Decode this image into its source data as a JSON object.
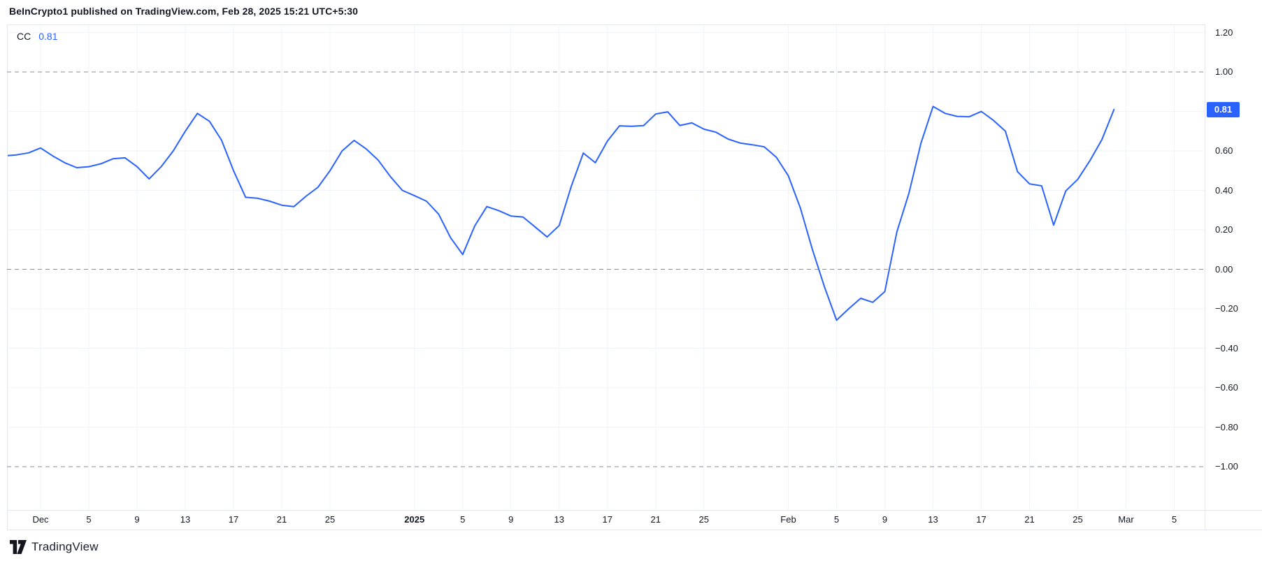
{
  "header": {
    "attribution": "BeInCrypto1 published on TradingView.com, Feb 28, 2025 15:21 UTC+5:30"
  },
  "legend": {
    "indicator": "CC",
    "value": "0.81"
  },
  "y_axis": {
    "labels": [
      {
        "text": "1.20",
        "value": 1.2
      },
      {
        "text": "1.00",
        "value": 1.0
      },
      {
        "text": "0.60",
        "value": 0.6
      },
      {
        "text": "0.40",
        "value": 0.4
      },
      {
        "text": "0.20",
        "value": 0.2
      },
      {
        "text": "0.00",
        "value": 0.0
      },
      {
        "text": "−0.20",
        "value": -0.2
      },
      {
        "text": "−0.40",
        "value": -0.4
      },
      {
        "text": "−0.60",
        "value": -0.6
      },
      {
        "text": "−0.80",
        "value": -0.8
      },
      {
        "text": "−1.00",
        "value": -1.0
      }
    ],
    "solid_gridline_levels": [
      1.2,
      0.8,
      0.6,
      0.4,
      0.2,
      -0.2,
      -0.4,
      -0.6,
      -0.8
    ],
    "dashed_levels": [
      1.0,
      0.0,
      -1.0
    ],
    "badge": {
      "text": "0.81",
      "value": 0.81
    }
  },
  "x_axis": {
    "ticks": [
      {
        "label": "Dec",
        "date": "2024-12-01",
        "bold": false
      },
      {
        "label": "5",
        "date": "2024-12-05",
        "bold": false
      },
      {
        "label": "9",
        "date": "2024-12-09",
        "bold": false
      },
      {
        "label": "13",
        "date": "2024-12-13",
        "bold": false
      },
      {
        "label": "17",
        "date": "2024-12-17",
        "bold": false
      },
      {
        "label": "21",
        "date": "2024-12-21",
        "bold": false
      },
      {
        "label": "25",
        "date": "2024-12-25",
        "bold": false
      },
      {
        "label": "2025",
        "date": "2025-01-01",
        "bold": true
      },
      {
        "label": "5",
        "date": "2025-01-05",
        "bold": false
      },
      {
        "label": "9",
        "date": "2025-01-09",
        "bold": false
      },
      {
        "label": "13",
        "date": "2025-01-13",
        "bold": false
      },
      {
        "label": "17",
        "date": "2025-01-17",
        "bold": false
      },
      {
        "label": "21",
        "date": "2025-01-21",
        "bold": false
      },
      {
        "label": "25",
        "date": "2025-01-25",
        "bold": false
      },
      {
        "label": "Feb",
        "date": "2025-02-01",
        "bold": false
      },
      {
        "label": "5",
        "date": "2025-02-05",
        "bold": false
      },
      {
        "label": "9",
        "date": "2025-02-09",
        "bold": false
      },
      {
        "label": "13",
        "date": "2025-02-13",
        "bold": false
      },
      {
        "label": "17",
        "date": "2025-02-17",
        "bold": false
      },
      {
        "label": "21",
        "date": "2025-02-21",
        "bold": false
      },
      {
        "label": "25",
        "date": "2025-02-25",
        "bold": false
      },
      {
        "label": "Mar",
        "date": "2025-03-01",
        "bold": false
      },
      {
        "label": "5",
        "date": "2025-03-05",
        "bold": false
      }
    ]
  },
  "chart_data": {
    "type": "line",
    "title": "CC (Correlation Coefficient)",
    "xlabel": "",
    "ylabel": "",
    "ylim": [
      -1.22,
      1.24
    ],
    "x_range": [
      "2024-11-28",
      "2025-03-07"
    ],
    "grid": true,
    "legend_position": "top-left",
    "last_value": 0.81,
    "series": [
      {
        "name": "CC",
        "color": "#2962ff",
        "points": [
          {
            "d": "2024-11-28",
            "v": 0.575
          },
          {
            "d": "2024-11-29",
            "v": 0.58
          },
          {
            "d": "2024-11-30",
            "v": 0.59
          },
          {
            "d": "2024-12-01",
            "v": 0.615
          },
          {
            "d": "2024-12-02",
            "v": 0.575
          },
          {
            "d": "2024-12-03",
            "v": 0.54
          },
          {
            "d": "2024-12-04",
            "v": 0.515
          },
          {
            "d": "2024-12-05",
            "v": 0.52
          },
          {
            "d": "2024-12-06",
            "v": 0.535
          },
          {
            "d": "2024-12-07",
            "v": 0.56
          },
          {
            "d": "2024-12-08",
            "v": 0.565
          },
          {
            "d": "2024-12-09",
            "v": 0.52
          },
          {
            "d": "2024-12-10",
            "v": 0.458
          },
          {
            "d": "2024-12-11",
            "v": 0.52
          },
          {
            "d": "2024-12-12",
            "v": 0.6
          },
          {
            "d": "2024-12-13",
            "v": 0.7
          },
          {
            "d": "2024-12-14",
            "v": 0.79
          },
          {
            "d": "2024-12-15",
            "v": 0.75
          },
          {
            "d": "2024-12-16",
            "v": 0.655
          },
          {
            "d": "2024-12-17",
            "v": 0.5
          },
          {
            "d": "2024-12-18",
            "v": 0.365
          },
          {
            "d": "2024-12-19",
            "v": 0.36
          },
          {
            "d": "2024-12-20",
            "v": 0.345
          },
          {
            "d": "2024-12-21",
            "v": 0.325
          },
          {
            "d": "2024-12-22",
            "v": 0.318
          },
          {
            "d": "2024-12-23",
            "v": 0.37
          },
          {
            "d": "2024-12-24",
            "v": 0.416
          },
          {
            "d": "2024-12-25",
            "v": 0.5
          },
          {
            "d": "2024-12-26",
            "v": 0.6
          },
          {
            "d": "2024-12-27",
            "v": 0.653
          },
          {
            "d": "2024-12-28",
            "v": 0.61
          },
          {
            "d": "2024-12-29",
            "v": 0.553
          },
          {
            "d": "2024-12-30",
            "v": 0.47
          },
          {
            "d": "2024-12-31",
            "v": 0.4
          },
          {
            "d": "2025-01-01",
            "v": 0.373
          },
          {
            "d": "2025-01-02",
            "v": 0.345
          },
          {
            "d": "2025-01-03",
            "v": 0.28
          },
          {
            "d": "2025-01-04",
            "v": 0.16
          },
          {
            "d": "2025-01-05",
            "v": 0.075
          },
          {
            "d": "2025-01-06",
            "v": 0.22
          },
          {
            "d": "2025-01-07",
            "v": 0.318
          },
          {
            "d": "2025-01-08",
            "v": 0.297
          },
          {
            "d": "2025-01-09",
            "v": 0.27
          },
          {
            "d": "2025-01-10",
            "v": 0.265
          },
          {
            "d": "2025-01-11",
            "v": 0.215
          },
          {
            "d": "2025-01-12",
            "v": 0.164
          },
          {
            "d": "2025-01-13",
            "v": 0.222
          },
          {
            "d": "2025-01-14",
            "v": 0.42
          },
          {
            "d": "2025-01-15",
            "v": 0.589
          },
          {
            "d": "2025-01-16",
            "v": 0.54
          },
          {
            "d": "2025-01-17",
            "v": 0.65
          },
          {
            "d": "2025-01-18",
            "v": 0.727
          },
          {
            "d": "2025-01-19",
            "v": 0.725
          },
          {
            "d": "2025-01-20",
            "v": 0.728
          },
          {
            "d": "2025-01-21",
            "v": 0.787
          },
          {
            "d": "2025-01-22",
            "v": 0.798
          },
          {
            "d": "2025-01-23",
            "v": 0.729
          },
          {
            "d": "2025-01-24",
            "v": 0.742
          },
          {
            "d": "2025-01-25",
            "v": 0.71
          },
          {
            "d": "2025-01-26",
            "v": 0.695
          },
          {
            "d": "2025-01-27",
            "v": 0.66
          },
          {
            "d": "2025-01-28",
            "v": 0.64
          },
          {
            "d": "2025-01-29",
            "v": 0.631
          },
          {
            "d": "2025-01-30",
            "v": 0.621
          },
          {
            "d": "2025-01-31",
            "v": 0.568
          },
          {
            "d": "2025-02-01",
            "v": 0.474
          },
          {
            "d": "2025-02-02",
            "v": 0.31
          },
          {
            "d": "2025-02-03",
            "v": 0.1
          },
          {
            "d": "2025-02-04",
            "v": -0.09
          },
          {
            "d": "2025-02-05",
            "v": -0.258
          },
          {
            "d": "2025-02-06",
            "v": -0.2
          },
          {
            "d": "2025-02-07",
            "v": -0.147
          },
          {
            "d": "2025-02-08",
            "v": -0.167
          },
          {
            "d": "2025-02-09",
            "v": -0.113
          },
          {
            "d": "2025-02-10",
            "v": 0.19
          },
          {
            "d": "2025-02-11",
            "v": 0.385
          },
          {
            "d": "2025-02-12",
            "v": 0.64
          },
          {
            "d": "2025-02-13",
            "v": 0.825
          },
          {
            "d": "2025-02-14",
            "v": 0.79
          },
          {
            "d": "2025-02-15",
            "v": 0.775
          },
          {
            "d": "2025-02-16",
            "v": 0.773
          },
          {
            "d": "2025-02-17",
            "v": 0.8
          },
          {
            "d": "2025-02-18",
            "v": 0.755
          },
          {
            "d": "2025-02-19",
            "v": 0.7
          },
          {
            "d": "2025-02-20",
            "v": 0.495
          },
          {
            "d": "2025-02-21",
            "v": 0.433
          },
          {
            "d": "2025-02-22",
            "v": 0.423
          },
          {
            "d": "2025-02-23",
            "v": 0.224
          },
          {
            "d": "2025-02-24",
            "v": 0.397
          },
          {
            "d": "2025-02-25",
            "v": 0.456
          },
          {
            "d": "2025-02-26",
            "v": 0.55
          },
          {
            "d": "2025-02-27",
            "v": 0.657
          },
          {
            "d": "2025-02-28",
            "v": 0.81
          }
        ]
      }
    ]
  },
  "footer": {
    "brand": "TradingView"
  },
  "colors": {
    "line": "#2962ff",
    "badge_bg": "#2962ff",
    "badge_text": "#ffffff",
    "grid": "#f0f3fa",
    "dashed": "#8a8e99",
    "text": "#131722",
    "border": "#e4e7ee",
    "background": "#ffffff"
  }
}
